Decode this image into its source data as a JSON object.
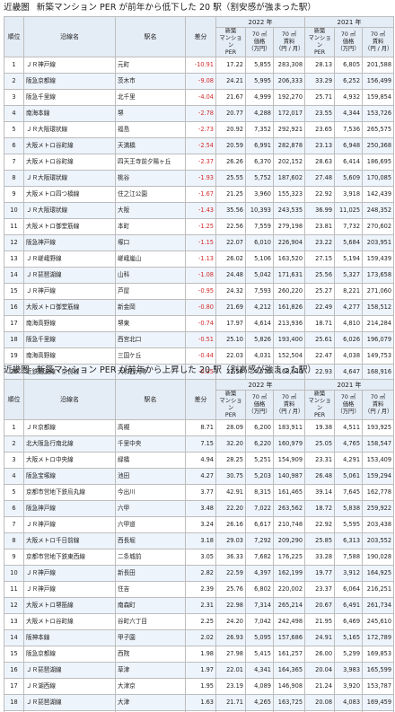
{
  "sections": [
    {
      "region": "近畿圏",
      "title": "新築マンション PER が前年から低下した 20 駅（割安感が強まった駅）",
      "trend": "neg",
      "headers": {
        "rank": "順位",
        "line": "沿線名",
        "station": "駅名",
        "diff": "差分",
        "year_a": "2022 年",
        "year_b": "2021 年",
        "per": "新築\nマンション\nPER",
        "price": "70 ㎡\n価格\n（万円）",
        "rent": "70 ㎡\n賃料\n（円 / 月）"
      },
      "rows": [
        [
          "1",
          "ＪＲ神戸線",
          "元町",
          "-10.91",
          "17.22",
          "5,855",
          "283,308",
          "28.13",
          "6,805",
          "201,588"
        ],
        [
          "2",
          "阪急京都線",
          "茨木市",
          "-9.08",
          "24.21",
          "5,995",
          "206,333",
          "33.29",
          "6,252",
          "156,499"
        ],
        [
          "3",
          "阪急千里線",
          "北千里",
          "-4.04",
          "21.67",
          "4,999",
          "192,270",
          "25.71",
          "4,932",
          "159,854"
        ],
        [
          "4",
          "南海本線",
          "堺",
          "-2.78",
          "20.77",
          "4,288",
          "172,017",
          "23.55",
          "4,344",
          "153,726"
        ],
        [
          "5",
          "ＪＲ大阪環状線",
          "福島",
          "-2.73",
          "20.92",
          "7,352",
          "292,921",
          "23.65",
          "7,536",
          "265,575"
        ],
        [
          "6",
          "大阪メトロ谷町線",
          "天満橋",
          "-2.54",
          "20.59",
          "6,991",
          "282,878",
          "23.13",
          "6,948",
          "250,368"
        ],
        [
          "7",
          "大阪メトロ谷町線",
          "四天王寺前夕陽ヶ丘",
          "-2.37",
          "26.26",
          "6,370",
          "202,152",
          "28.63",
          "6,414",
          "186,695"
        ],
        [
          "8",
          "ＪＲ大阪環状線",
          "桃谷",
          "-1.93",
          "25.55",
          "5,752",
          "187,602",
          "27.48",
          "5,609",
          "170,085"
        ],
        [
          "9",
          "大阪メトロ四つ橋線",
          "住之江公園",
          "-1.67",
          "21.25",
          "3,960",
          "155,323",
          "22.92",
          "3,918",
          "142,439"
        ],
        [
          "10",
          "ＪＲ大阪環状線",
          "大阪",
          "-1.43",
          "35.56",
          "10,393",
          "243,535",
          "36.99",
          "11,025",
          "248,352"
        ],
        [
          "11",
          "大阪メトロ御堂筋線",
          "本町",
          "-1.25",
          "22.56",
          "7,559",
          "279,198",
          "23.81",
          "7,732",
          "270,602"
        ],
        [
          "12",
          "阪急神戸線",
          "塚口",
          "-1.15",
          "22.07",
          "6,010",
          "226,904",
          "23.22",
          "5,684",
          "203,951"
        ],
        [
          "13",
          "ＪＲ嵯峨野線",
          "嵯峨嵐山",
          "-1.13",
          "26.02",
          "5,106",
          "163,520",
          "27.15",
          "5,194",
          "159,439"
        ],
        [
          "14",
          "ＪＲ琵琶湖線",
          "山科",
          "-1.08",
          "24.48",
          "5,042",
          "171,631",
          "25.56",
          "5,327",
          "173,658"
        ],
        [
          "15",
          "ＪＲ神戸線",
          "芦屋",
          "-0.95",
          "24.32",
          "7,593",
          "260,220",
          "25.27",
          "8,221",
          "271,060"
        ],
        [
          "16",
          "大阪メトロ御堂筋線",
          "新金岡",
          "-0.80",
          "21.69",
          "4,212",
          "161,826",
          "22.49",
          "4,277",
          "158,512"
        ],
        [
          "17",
          "南海高野線",
          "堺東",
          "-0.74",
          "17.97",
          "4,614",
          "213,936",
          "18.71",
          "4,810",
          "214,284"
        ],
        [
          "18",
          "阪急千里線",
          "西宮北口",
          "-0.51",
          "25.10",
          "5,826",
          "193,400",
          "25.61",
          "6,026",
          "196,079"
        ],
        [
          "19",
          "南海高野線",
          "三国ケ丘",
          "-0.44",
          "22.03",
          "4,031",
          "152,504",
          "22.47",
          "4,038",
          "149,753"
        ],
        [
          "20",
          "近鉄難波線・奈良線",
          "大和西大寺",
          "-0.35",
          "22.58",
          "4,570",
          "168,640",
          "22.93",
          "4,647",
          "168,916"
        ]
      ]
    },
    {
      "region": "近畿圏",
      "title": "新築マンション PER が前年から上昇した 20 駅（割高感が強まった駅）",
      "trend": "pos",
      "headers": {
        "rank": "順位",
        "line": "沿線名",
        "station": "駅名",
        "diff": "差分",
        "year_a": "2022 年",
        "year_b": "2021 年",
        "per": "新築\nマンション\nPER",
        "price": "70 ㎡\n価格\n（万円）",
        "rent": "70 ㎡\n賃料\n（円 / 月）"
      },
      "rows": [
        [
          "1",
          "ＪＲ京都線",
          "高槻",
          "8.71",
          "28.09",
          "6,200",
          "183,911",
          "19.38",
          "4,511",
          "193,925"
        ],
        [
          "2",
          "北大阪急行南北線",
          "千里中央",
          "7.15",
          "32.20",
          "6,220",
          "160,979",
          "25.05",
          "4,765",
          "158,547"
        ],
        [
          "3",
          "大阪メトロ中央線",
          "緑橋",
          "4.94",
          "28.25",
          "5,251",
          "154,909",
          "23.31",
          "4,291",
          "153,409"
        ],
        [
          "4",
          "阪急宝塚線",
          "池田",
          "4.27",
          "30.75",
          "5,203",
          "140,987",
          "26.48",
          "5,061",
          "159,294"
        ],
        [
          "5",
          "京都市営地下鉄烏丸線",
          "今出川",
          "3.77",
          "42.91",
          "8,315",
          "161,465",
          "39.14",
          "7,645",
          "162,778"
        ],
        [
          "6",
          "阪急神戸線",
          "六甲",
          "3.48",
          "22.20",
          "7,022",
          "263,562",
          "18.72",
          "5,838",
          "259,922"
        ],
        [
          "7",
          "ＪＲ神戸線",
          "六甲道",
          "3.24",
          "26.16",
          "6,617",
          "210,748",
          "22.92",
          "5,595",
          "203,438"
        ],
        [
          "8",
          "大阪メトロ千日前線",
          "西長堀",
          "3.18",
          "29.03",
          "7,292",
          "209,290",
          "25.85",
          "6,313",
          "203,552"
        ],
        [
          "9",
          "京都市営地下鉄東西線",
          "二条城前",
          "3.05",
          "36.33",
          "7,682",
          "176,225",
          "33.28",
          "7,588",
          "190,028"
        ],
        [
          "10",
          "ＪＲ神戸線",
          "新長田",
          "2.82",
          "22.59",
          "4,397",
          "162,199",
          "19.77",
          "3,912",
          "164,925"
        ],
        [
          "11",
          "ＪＲ神戸線",
          "住吉",
          "2.39",
          "25.76",
          "6,802",
          "220,002",
          "23.37",
          "6,064",
          "216,251"
        ],
        [
          "12",
          "大阪メトロ堺筋線",
          "南森町",
          "2.31",
          "22.98",
          "7,314",
          "265,214",
          "20.67",
          "6,491",
          "261,734"
        ],
        [
          "13",
          "大阪メトロ谷町線",
          "谷町六丁目",
          "2.25",
          "24.20",
          "7,042",
          "242,498",
          "21.95",
          "6,469",
          "245,610"
        ],
        [
          "14",
          "阪神本線",
          "甲子園",
          "2.02",
          "26.93",
          "5,095",
          "157,686",
          "24.91",
          "5,165",
          "172,789"
        ],
        [
          "15",
          "阪急京都線",
          "西院",
          "1.98",
          "27.98",
          "5,415",
          "161,257",
          "26.00",
          "5,299",
          "169,853"
        ],
        [
          "16",
          "ＪＲ琵琶湖線",
          "草津",
          "1.97",
          "22.01",
          "4,341",
          "164,365",
          "20.04",
          "3,983",
          "165,599"
        ],
        [
          "17",
          "ＪＲ湖西線",
          "大津京",
          "1.95",
          "23.19",
          "4,089",
          "146,908",
          "21.24",
          "3,920",
          "153,787"
        ],
        [
          "18",
          "ＪＲ琵琶湖線",
          "大津",
          "1.63",
          "21.71",
          "4,265",
          "163,725",
          "20.08",
          "4,083",
          "169,459"
        ],
        [
          "19",
          "阪急千里線",
          "山田",
          "1.55",
          "21.22",
          "4,246",
          "166,776",
          "19.67",
          "4,217",
          "178,696"
        ],
        [
          "20",
          "阪神本線",
          "武庫川",
          "1.49",
          "22.55",
          "4,217",
          "155,809",
          "21.06",
          "3,942",
          "155,964"
        ]
      ]
    }
  ]
}
